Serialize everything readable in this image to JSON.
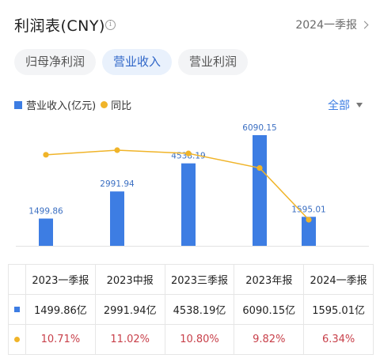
{
  "header": {
    "title": "利润表(CNY)",
    "info_icon": "info-icon",
    "period_label": "2024一季报"
  },
  "tabs": [
    {
      "label": "归母净利润",
      "active": false
    },
    {
      "label": "营业收入",
      "active": true
    },
    {
      "label": "营业利润",
      "active": false
    }
  ],
  "legend": {
    "bar_label": "营业收入(亿元)",
    "line_label": "同比"
  },
  "filter_label": "全部",
  "colors": {
    "bar": "#3d7de3",
    "line": "#f0b429",
    "accent": "#2f66c8",
    "negative_pct": "#c8404a"
  },
  "chart_data": {
    "type": "bar",
    "categories": [
      "2023一季报",
      "2023中报",
      "2023三季报",
      "2023年报",
      "2024一季报"
    ],
    "series": [
      {
        "name": "营业收入(亿元)",
        "type": "bar",
        "values": [
          1499.86,
          2991.94,
          4538.19,
          6090.15,
          1595.01
        ]
      },
      {
        "name": "同比",
        "type": "line",
        "unit": "%",
        "values": [
          10.71,
          11.02,
          10.8,
          9.82,
          6.34
        ]
      }
    ],
    "bar_data_labels": [
      "1499.86",
      "2991.94",
      "4538.19",
      "6090.15",
      "1595.01"
    ],
    "grid": false,
    "legend_position": "top-left"
  },
  "table": {
    "headers": [
      "2023一季报",
      "2023中报",
      "2023三季报",
      "2023年报",
      "2024一季报"
    ],
    "revenue_row": [
      "1499.86亿",
      "2991.94亿",
      "4538.19亿",
      "6090.15亿",
      "1595.01亿"
    ],
    "yoy_row": [
      "10.71%",
      "11.02%",
      "10.80%",
      "9.82%",
      "6.34%"
    ]
  }
}
